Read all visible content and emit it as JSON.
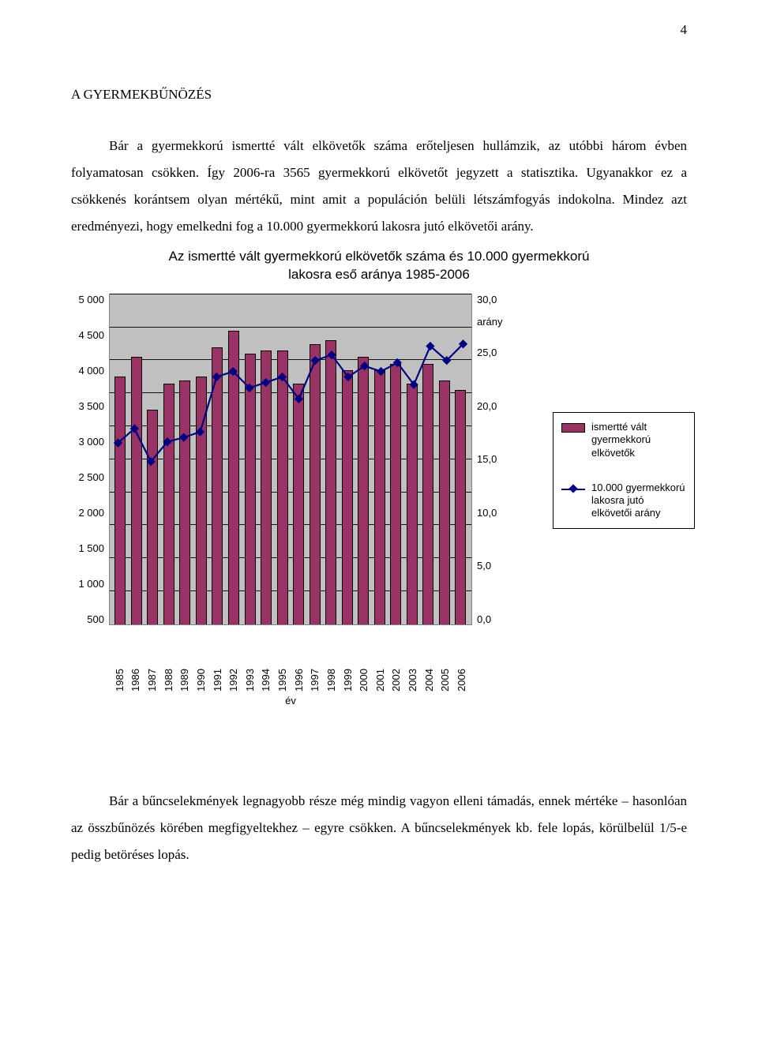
{
  "page_number": "4",
  "section_title": "A GYERMEKBŰNÖZÉS",
  "paragraph1": "Bár a gyermekkorú ismertté vált elkövetők száma erőteljesen hullámzik, az utóbbi három évben folyamatosan csökken. Így 2006-ra 3565 gyermekkorú elkövetőt jegyzett a statisztika. Ugyanakkor ez a csökkenés korántsem olyan mértékű, mint amit a populáción belüli létszámfogyás indokolna. Mindez azt eredményezi, hogy emelkedni fog a 10.000 gyermekkorú lakosra jutó elkövetői arány.",
  "paragraph2": "Bár a bűncselekmények legnagyobb része még mindig vagyon elleni támadás, ennek mértéke – hasonlóan az összbűnözés körében megfigyeltekhez – egyre csökken. A bűncselekmények kb. fele lopás, körülbelül 1/5-e pedig betöréses lopás.",
  "chart": {
    "title_line1": "Az ismertté vált gyermekkorú elkövetők száma és 10.000 gyermekkorú",
    "title_line2": "lakosra eső aránya 1985-2006",
    "x_axis_title": "év",
    "y2_extra_label": "arány",
    "years": [
      "1985",
      "1986",
      "1987",
      "1988",
      "1989",
      "1990",
      "1991",
      "1992",
      "1993",
      "1994",
      "1995",
      "1996",
      "1997",
      "1998",
      "1999",
      "2000",
      "2001",
      "2002",
      "2003",
      "2004",
      "2005",
      "2006"
    ],
    "bar_values": [
      3750,
      4050,
      3250,
      3650,
      3700,
      3750,
      4200,
      4450,
      4100,
      4150,
      4150,
      3650,
      4250,
      4300,
      3850,
      4050,
      3850,
      3950,
      3650,
      3950,
      3700,
      3550
    ],
    "line_values": [
      16.5,
      17.8,
      14.8,
      16.6,
      17.0,
      17.5,
      22.5,
      23.0,
      21.5,
      22.0,
      22.5,
      20.5,
      24.0,
      24.5,
      22.5,
      23.5,
      23.0,
      23.8,
      21.8,
      25.3,
      24.0,
      25.5
    ],
    "y1_ticks": [
      "5 000",
      "4 500",
      "4 000",
      "3 500",
      "3 000",
      "2 500",
      "2 000",
      "1 500",
      "1 000",
      "500"
    ],
    "y2_ticks": [
      "30,0",
      "25,0",
      "20,0",
      "15,0",
      "10,0",
      "5,0",
      "0,0"
    ],
    "y1_max": 5000,
    "y2_max": 30,
    "bar_color": "#993366",
    "line_color": "#000080",
    "plot_bg": "#c0c0c0",
    "grid_color": "#000000",
    "legend_bar": "ismertté vált gyermekkorú elkövetők",
    "legend_line": "10.000 gyermekkorú lakosra jutó elkövetői arány"
  }
}
